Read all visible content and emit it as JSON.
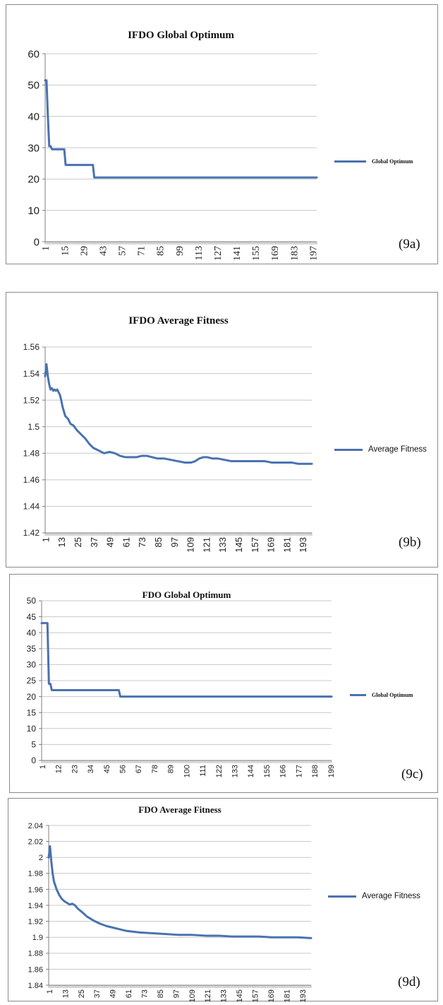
{
  "colors": {
    "series": "#4a72b0",
    "grid": "#c8c8c8",
    "axis": "#7f7f7f",
    "text": "#222222"
  },
  "panel_labels": [
    "(9a)",
    "(9b)",
    "(9c)",
    "(9d)"
  ],
  "legends": [
    "Global Optimum",
    "Average Fitness",
    "Global Optimum",
    "Average Fitness"
  ],
  "chart_data": [
    {
      "type": "line",
      "title": "IFDO Global Optimum",
      "xlabel": "",
      "ylabel": "",
      "ylim": [
        0,
        60
      ],
      "yticks": [
        "0",
        "10",
        "20",
        "30",
        "40",
        "50",
        "60"
      ],
      "xtick_labels": [
        "1",
        "15",
        "29",
        "43",
        "57",
        "71",
        "85",
        "99",
        "113",
        "127",
        "141",
        "155",
        "169",
        "183",
        "197"
      ],
      "xlim": [
        1,
        200
      ],
      "grid": true,
      "legend_position": "right",
      "series": [
        {
          "name": "Global Optimum",
          "points": [
            [
              1,
              51.5
            ],
            [
              2,
              51.5
            ],
            [
              3,
              40
            ],
            [
              4,
              30.5
            ],
            [
              5,
              30.5
            ],
            [
              6,
              29.5
            ],
            [
              14,
              29.5
            ],
            [
              15,
              29.5
            ],
            [
              16,
              24.5
            ],
            [
              36,
              24.5
            ],
            [
              37,
              20.5
            ],
            [
              200,
              20.5
            ]
          ]
        }
      ]
    },
    {
      "type": "line",
      "title": "IFDO Average Fitness",
      "xlabel": "",
      "ylabel": "",
      "ylim": [
        1.42,
        1.56
      ],
      "yticks": [
        "1.42",
        "1.44",
        "1.46",
        "1.48",
        "1.5",
        "1.52",
        "1.54",
        "1.56"
      ],
      "xtick_labels": [
        "1",
        "13",
        "25",
        "37",
        "49",
        "61",
        "73",
        "85",
        "97",
        "109",
        "121",
        "133",
        "145",
        "157",
        "169",
        "181",
        "193"
      ],
      "xlim": [
        1,
        200
      ],
      "grid": true,
      "legend_position": "right",
      "series": [
        {
          "name": "Average Fitness",
          "points": [
            [
              1,
              1.538
            ],
            [
              2,
              1.547
            ],
            [
              3,
              1.538
            ],
            [
              4,
              1.532
            ],
            [
              5,
              1.528
            ],
            [
              6,
              1.529
            ],
            [
              7,
              1.527
            ],
            [
              8,
              1.528
            ],
            [
              9,
              1.527
            ],
            [
              10,
              1.528
            ],
            [
              11,
              1.526
            ],
            [
              12,
              1.524
            ],
            [
              13,
              1.52
            ],
            [
              14,
              1.515
            ],
            [
              16,
              1.508
            ],
            [
              18,
              1.506
            ],
            [
              20,
              1.502
            ],
            [
              22,
              1.501
            ],
            [
              25,
              1.497
            ],
            [
              28,
              1.494
            ],
            [
              31,
              1.491
            ],
            [
              34,
              1.487
            ],
            [
              37,
              1.484
            ],
            [
              41,
              1.482
            ],
            [
              45,
              1.48
            ],
            [
              49,
              1.481
            ],
            [
              53,
              1.48
            ],
            [
              57,
              1.478
            ],
            [
              61,
              1.477
            ],
            [
              65,
              1.477
            ],
            [
              69,
              1.477
            ],
            [
              73,
              1.478
            ],
            [
              77,
              1.478
            ],
            [
              81,
              1.477
            ],
            [
              85,
              1.476
            ],
            [
              90,
              1.476
            ],
            [
              95,
              1.475
            ],
            [
              100,
              1.474
            ],
            [
              105,
              1.473
            ],
            [
              110,
              1.473
            ],
            [
              113,
              1.474
            ],
            [
              116,
              1.476
            ],
            [
              119,
              1.477
            ],
            [
              122,
              1.477
            ],
            [
              126,
              1.476
            ],
            [
              130,
              1.476
            ],
            [
              135,
              1.475
            ],
            [
              140,
              1.474
            ],
            [
              145,
              1.474
            ],
            [
              150,
              1.474
            ],
            [
              155,
              1.474
            ],
            [
              160,
              1.474
            ],
            [
              165,
              1.474
            ],
            [
              170,
              1.473
            ],
            [
              175,
              1.473
            ],
            [
              180,
              1.473
            ],
            [
              185,
              1.473
            ],
            [
              190,
              1.472
            ],
            [
              195,
              1.472
            ],
            [
              200,
              1.472
            ]
          ]
        }
      ]
    },
    {
      "type": "line",
      "title": "FDO Global Optimum",
      "xlabel": "",
      "ylabel": "",
      "ylim": [
        0,
        50
      ],
      "yticks": [
        "0",
        "5",
        "10",
        "15",
        "20",
        "25",
        "30",
        "35",
        "40",
        "45",
        "50"
      ],
      "xtick_labels": [
        "1",
        "12",
        "23",
        "34",
        "45",
        "56",
        "67",
        "78",
        "89",
        "100",
        "111",
        "122",
        "133",
        "144",
        "155",
        "166",
        "177",
        "188",
        "199"
      ],
      "xlim": [
        1,
        200
      ],
      "grid": true,
      "legend_position": "right",
      "series": [
        {
          "name": "Global Optimum",
          "points": [
            [
              1,
              43
            ],
            [
              5,
              43
            ],
            [
              6,
              24
            ],
            [
              7,
              24
            ],
            [
              8,
              22
            ],
            [
              54,
              22
            ],
            [
              55,
              20
            ],
            [
              200,
              20
            ]
          ]
        }
      ]
    },
    {
      "type": "line",
      "title": "FDO Average Fitness",
      "xlabel": "",
      "ylabel": "",
      "ylim": [
        1.84,
        2.04
      ],
      "yticks": [
        "1.84",
        "1.86",
        "1.88",
        "1.9",
        "1.92",
        "1.94",
        "1.96",
        "1.98",
        "2",
        "2.02",
        "2.04"
      ],
      "xtick_labels": [
        "1",
        "13",
        "25",
        "37",
        "49",
        "61",
        "73",
        "85",
        "97",
        "109",
        "121",
        "133",
        "145",
        "157",
        "169",
        "181",
        "193"
      ],
      "xlim": [
        1,
        200
      ],
      "grid": true,
      "legend_position": "right",
      "series": [
        {
          "name": "Average Fitness",
          "points": [
            [
              1,
              2.0
            ],
            [
              2,
              2.014
            ],
            [
              3,
              1.995
            ],
            [
              4,
              1.98
            ],
            [
              5,
              1.97
            ],
            [
              7,
              1.96
            ],
            [
              9,
              1.953
            ],
            [
              11,
              1.948
            ],
            [
              13,
              1.945
            ],
            [
              15,
              1.943
            ],
            [
              17,
              1.941
            ],
            [
              19,
              1.942
            ],
            [
              21,
              1.94
            ],
            [
              23,
              1.936
            ],
            [
              26,
              1.932
            ],
            [
              30,
              1.926
            ],
            [
              35,
              1.921
            ],
            [
              40,
              1.917
            ],
            [
              45,
              1.914
            ],
            [
              50,
              1.912
            ],
            [
              55,
              1.91
            ],
            [
              60,
              1.908
            ],
            [
              70,
              1.906
            ],
            [
              80,
              1.905
            ],
            [
              90,
              1.904
            ],
            [
              100,
              1.903
            ],
            [
              110,
              1.903
            ],
            [
              120,
              1.902
            ],
            [
              130,
              1.902
            ],
            [
              140,
              1.901
            ],
            [
              150,
              1.901
            ],
            [
              160,
              1.901
            ],
            [
              170,
              1.9
            ],
            [
              180,
              1.9
            ],
            [
              190,
              1.9
            ],
            [
              200,
              1.899
            ]
          ]
        }
      ]
    }
  ]
}
